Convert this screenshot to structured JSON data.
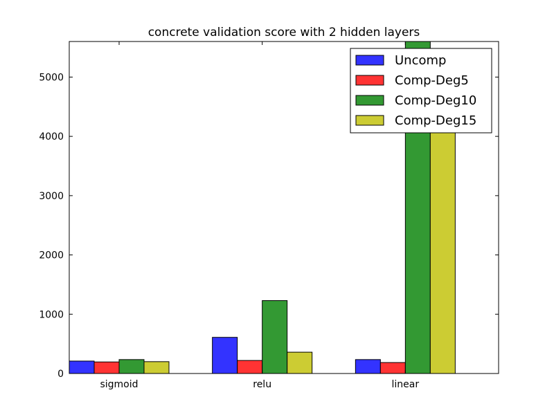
{
  "chart_data": {
    "type": "bar",
    "title": "concrete validation score with 2 hidden layers",
    "xlabel": "",
    "ylabel": "",
    "categories": [
      "sigmoid",
      "relu",
      "linear"
    ],
    "ylim": [
      0,
      5600
    ],
    "yticks": [
      0,
      1000,
      2000,
      3000,
      4000,
      5000
    ],
    "grid": false,
    "legend_position": "top-right",
    "series": [
      {
        "name": "Uncomp",
        "color": "#3333ff",
        "values": [
          210,
          610,
          235
        ]
      },
      {
        "name": "Comp-Deg5",
        "color": "#ff3333",
        "values": [
          195,
          220,
          185
        ]
      },
      {
        "name": "Comp-Deg10",
        "color": "#339933",
        "values": [
          235,
          1230,
          5600
        ]
      },
      {
        "name": "Comp-Deg15",
        "color": "#cccc33",
        "values": [
          200,
          360,
          4600
        ]
      }
    ]
  }
}
